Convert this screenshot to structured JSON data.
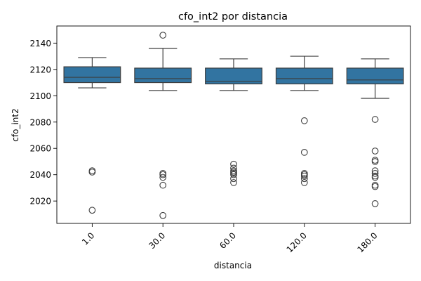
{
  "chart_data": {
    "type": "box",
    "title": "cfo_int2 por distancia",
    "xlabel": "distancia",
    "ylabel": "cfo_int2",
    "categories": [
      "1.0",
      "30.0",
      "60.0",
      "120.0",
      "180.0"
    ],
    "ylim": [
      2003,
      2153
    ],
    "yticks": [
      2020,
      2040,
      2060,
      2080,
      2100,
      2120,
      2140
    ],
    "grid": false,
    "legend": "none",
    "box_color": "#3274a1",
    "line_color": "#3d3d3d",
    "boxes": [
      {
        "category": "1.0",
        "q1": 2110,
        "median": 2114,
        "q3": 2122,
        "whisker_low": 2106,
        "whisker_high": 2129,
        "outliers": [
          2043,
          2042,
          2013
        ]
      },
      {
        "category": "30.0",
        "q1": 2110,
        "median": 2113,
        "q3": 2121,
        "whisker_low": 2104,
        "whisker_high": 2136,
        "outliers": [
          2146,
          2041,
          2040,
          2038,
          2032,
          2009
        ]
      },
      {
        "category": "60.0",
        "q1": 2109,
        "median": 2111,
        "q3": 2121,
        "whisker_low": 2104,
        "whisker_high": 2128,
        "outliers": [
          2048,
          2045,
          2043,
          2042,
          2041,
          2040,
          2037,
          2034
        ]
      },
      {
        "category": "120.0",
        "q1": 2109,
        "median": 2113,
        "q3": 2121,
        "whisker_low": 2104,
        "whisker_high": 2130,
        "outliers": [
          2081,
          2057,
          2041,
          2040,
          2039,
          2037,
          2034
        ]
      },
      {
        "category": "180.0",
        "q1": 2109,
        "median": 2112,
        "q3": 2121,
        "whisker_low": 2098,
        "whisker_high": 2128,
        "outliers": [
          2082,
          2058,
          2051,
          2050,
          2043,
          2041,
          2039,
          2038,
          2032,
          2031,
          2018
        ]
      }
    ]
  }
}
